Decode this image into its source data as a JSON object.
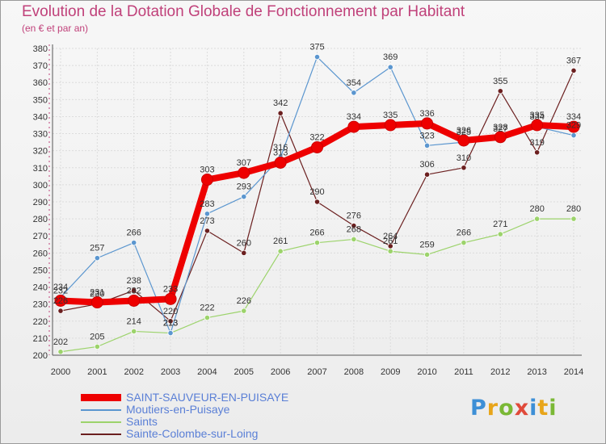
{
  "header": {
    "title": "Evolution de la Dotation Globale de Fonctionnement par Habitant",
    "subtitle": "(en € et par an)"
  },
  "logo": {
    "text": "Proxiti",
    "colors": [
      "#3d8fd6",
      "#e8a51a",
      "#7ab835",
      "#e04a3a",
      "#3d8fd6",
      "#e8a51a",
      "#7ab835"
    ]
  },
  "chart_data": {
    "type": "line",
    "title": "Evolution de la Dotation Globale de Fonctionnement par Habitant",
    "subtitle": "(en € et par an)",
    "xlabel": "",
    "ylabel": "",
    "x": [
      2000,
      2001,
      2002,
      2003,
      2004,
      2005,
      2006,
      2007,
      2008,
      2009,
      2010,
      2011,
      2012,
      2013,
      2014
    ],
    "ylim": [
      200,
      380
    ],
    "ytick_step": 10,
    "grid": true,
    "legend_position": "bottom-left",
    "series": [
      {
        "name": "SAINT-SAUVEUR-EN-PUISAYE",
        "color": "#ee0000",
        "values": [
          232,
          231,
          232,
          233,
          303,
          307,
          313,
          322,
          334,
          335,
          336,
          326,
          328,
          335,
          334
        ]
      },
      {
        "name": "Moutiers-en-Puisaye",
        "color": "#5b96cf",
        "values": [
          234,
          257,
          266,
          213,
          283,
          293,
          316,
          375,
          354,
          369,
          323,
          325,
          327,
          334,
          329
        ]
      },
      {
        "name": "Saints",
        "color": "#9cd36b",
        "values": [
          202,
          205,
          214,
          213,
          222,
          226,
          261,
          266,
          268,
          261,
          259,
          266,
          271,
          280,
          280
        ]
      },
      {
        "name": "Sainte-Colombe-sur-Loing",
        "color": "#6b1f1f",
        "values": [
          226,
          230,
          238,
          220,
          273,
          260,
          342,
          290,
          276,
          264,
          306,
          310,
          355,
          319,
          367
        ]
      }
    ]
  }
}
